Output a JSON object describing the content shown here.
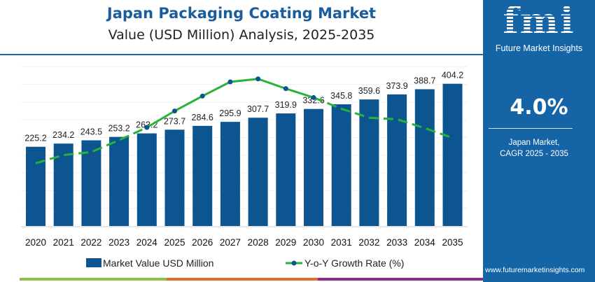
{
  "title": "Japan Packaging Coating Market",
  "subtitle": "Value (USD Million) Analysis, 2025-2035",
  "side": {
    "logo": "fmi",
    "brand": "Future Market Insights",
    "cagr": "4.0%",
    "market": "Japan Market,",
    "period": "CAGR 2025 - 2035",
    "website": "www.futuremarketinsights.com"
  },
  "colors": {
    "bar": "#0d5590",
    "line": "#27b23a",
    "marker": "#0d5590",
    "panel": "#1565a6"
  },
  "chart_data": {
    "type": "bar",
    "categories": [
      "2020",
      "2021",
      "2022",
      "2023",
      "2024",
      "2025",
      "2026",
      "2027",
      "2028",
      "2029",
      "2030",
      "2031",
      "2032",
      "2033",
      "2034",
      "2035"
    ],
    "series": [
      {
        "name": "Market Value USD Million",
        "type": "bar",
        "values": [
          225.2,
          234.2,
          243.5,
          253.2,
          263.2,
          273.7,
          284.6,
          295.9,
          307.7,
          319.9,
          332.6,
          345.8,
          359.6,
          373.9,
          388.7,
          404.2
        ]
      },
      {
        "name": "Y-o-Y Growth Rate (%)",
        "type": "line",
        "values": [
          3.25,
          3.36,
          3.4,
          3.56,
          3.73,
          3.95,
          4.15,
          4.34,
          4.38,
          4.25,
          4.13,
          3.98,
          3.86,
          3.84,
          3.72,
          3.59
        ]
      }
    ],
    "ylim": [
      0,
      450
    ],
    "grid": true,
    "legend": "bottom"
  }
}
